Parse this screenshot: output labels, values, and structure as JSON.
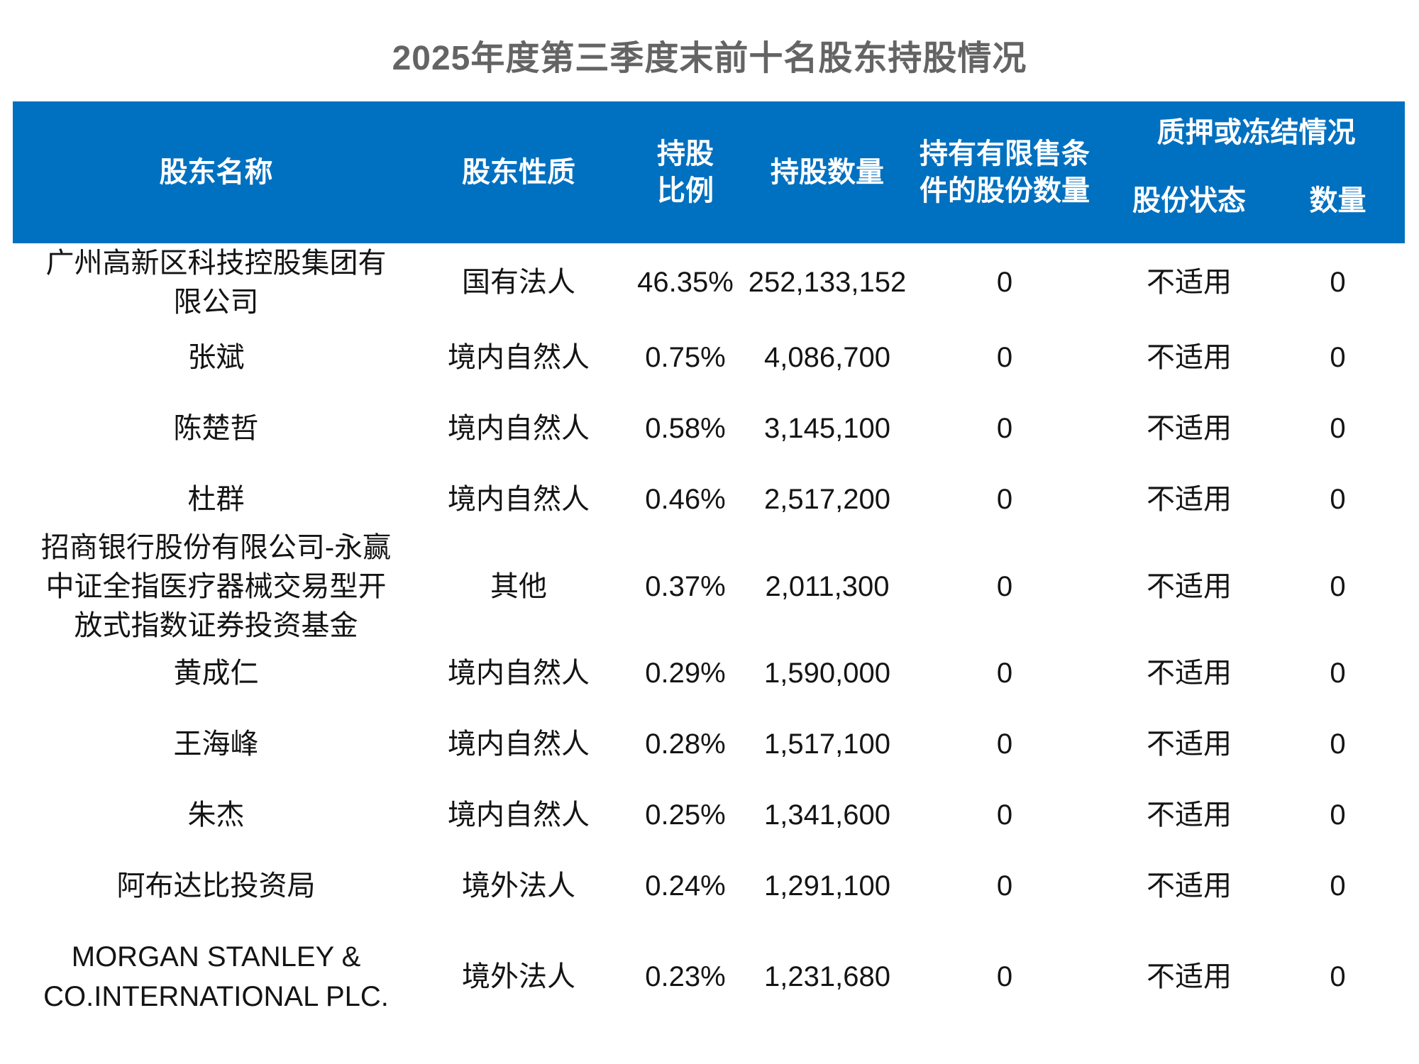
{
  "title": "2025年度第三季度末前十名股东持股情况",
  "colors": {
    "header_bg": "#0070C0",
    "header_text": "#FFFFFF",
    "title_text": "#646464",
    "body_text": "#141414"
  },
  "table": {
    "header": {
      "shareholder_name": "股东名称",
      "shareholder_nature": "股东性质",
      "shareholding_ratio": "持股\n比例",
      "shares_held": "持股数量",
      "restricted_shares": "持有有限售条\n件的股份数量",
      "pledge_group": "质押或冻结情况",
      "share_status": "股份状态",
      "quantity": "数量"
    },
    "rows": [
      {
        "name": "广州高新区科技控股集团有限公司",
        "nature": "国有法人",
        "ratio": "46.35%",
        "shares": "252,133,152",
        "restricted": "0",
        "status": "不适用",
        "qty": "0"
      },
      {
        "name": "张斌",
        "nature": "境内自然人",
        "ratio": "0.75%",
        "shares": "4,086,700",
        "restricted": "0",
        "status": "不适用",
        "qty": "0"
      },
      {
        "name": "陈楚哲",
        "nature": "境内自然人",
        "ratio": "0.58%",
        "shares": "3,145,100",
        "restricted": "0",
        "status": "不适用",
        "qty": "0"
      },
      {
        "name": "杜群",
        "nature": "境内自然人",
        "ratio": "0.46%",
        "shares": "2,517,200",
        "restricted": "0",
        "status": "不适用",
        "qty": "0"
      },
      {
        "name": "招商银行股份有限公司-永赢中证全指医疗器械交易型开放式指数证券投资基金",
        "nature": "其他",
        "ratio": "0.37%",
        "shares": "2,011,300",
        "restricted": "0",
        "status": "不适用",
        "qty": "0"
      },
      {
        "name": "黄成仁",
        "nature": "境内自然人",
        "ratio": "0.29%",
        "shares": "1,590,000",
        "restricted": "0",
        "status": "不适用",
        "qty": "0"
      },
      {
        "name": "王海峰",
        "nature": "境内自然人",
        "ratio": "0.28%",
        "shares": "1,517,100",
        "restricted": "0",
        "status": "不适用",
        "qty": "0"
      },
      {
        "name": "朱杰",
        "nature": "境内自然人",
        "ratio": "0.25%",
        "shares": "1,341,600",
        "restricted": "0",
        "status": "不适用",
        "qty": "0"
      },
      {
        "name": "阿布达比投资局",
        "nature": "境外法人",
        "ratio": "0.24%",
        "shares": "1,291,100",
        "restricted": "0",
        "status": "不适用",
        "qty": "0"
      },
      {
        "name": "MORGAN STANLEY & CO.INTERNATIONAL PLC.",
        "nature": "境外法人",
        "ratio": "0.23%",
        "shares": "1,231,680",
        "restricted": "0",
        "status": "不适用",
        "qty": "0"
      }
    ]
  }
}
